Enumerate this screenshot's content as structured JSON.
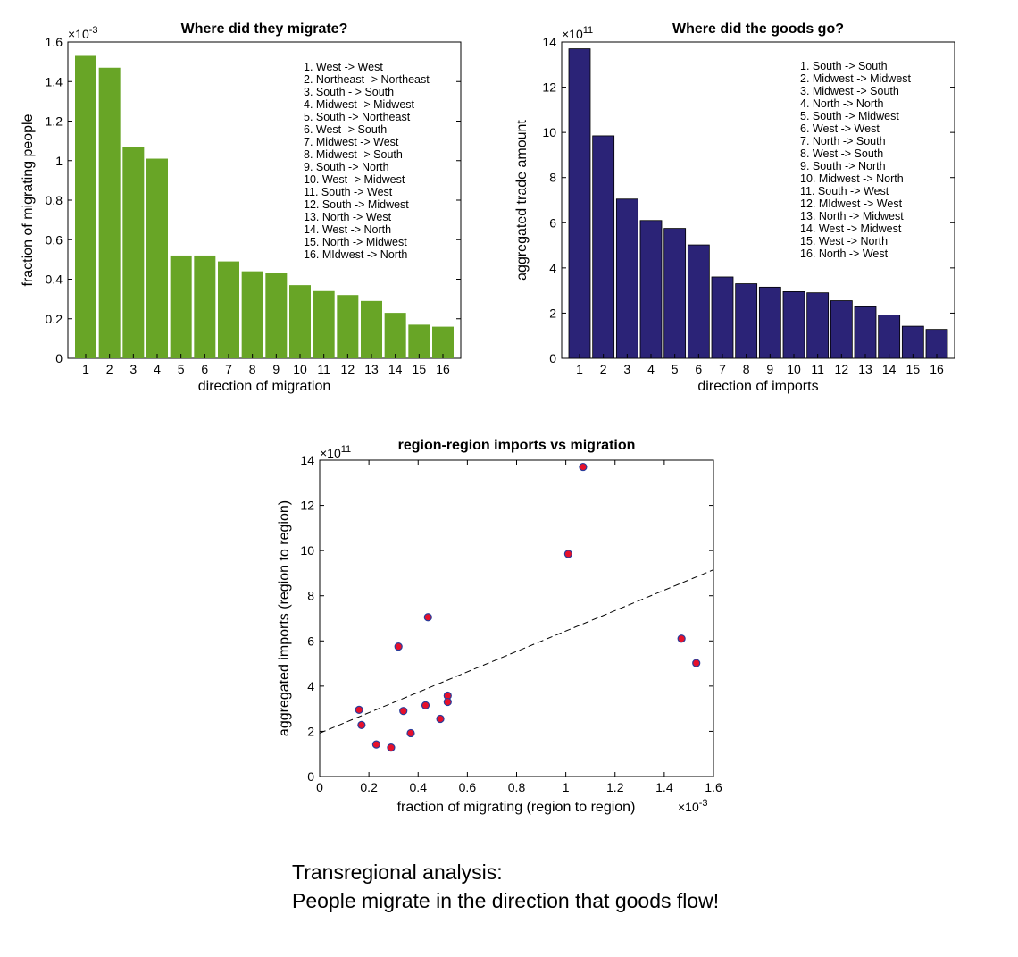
{
  "colors": {
    "migration_bar": "#68a526",
    "imports_bar": "#2b2377",
    "scatter_point": "#e8102a",
    "scatter_edge": "#2a3c9a"
  },
  "caption": {
    "line1": "Transregional analysis:",
    "line2": "People migrate in the direction that goods flow!"
  },
  "chart_data": [
    {
      "type": "bar",
      "title": "Where did they migrate?",
      "xlabel": "direction of migration",
      "ylabel": "fraction of migrating people",
      "y_exponent": "×10-3",
      "categories": [
        "1",
        "2",
        "3",
        "4",
        "5",
        "6",
        "7",
        "8",
        "9",
        "10",
        "11",
        "12",
        "13",
        "14",
        "15",
        "16"
      ],
      "values": [
        1.53,
        1.47,
        1.07,
        1.01,
        0.52,
        0.52,
        0.49,
        0.44,
        0.43,
        0.37,
        0.34,
        0.32,
        0.29,
        0.23,
        0.17,
        0.16
      ],
      "ylim": [
        0,
        1.6
      ],
      "yticks": [
        "0",
        "0.2",
        "0.4",
        "0.6",
        "0.8",
        "1",
        "1.2",
        "1.4",
        "1.6"
      ],
      "legend": [
        "1. West -> West",
        "2. Northeast -> Northeast",
        "3. South - > South",
        "4. Midwest -> Midwest",
        "5. South -> Northeast",
        "6. West -> South",
        "7. Midwest -> West",
        "8. Midwest -> South",
        "9. South -> North",
        "10. West -> Midwest",
        "11. South -> West",
        "12. South -> Midwest",
        "13. North -> West",
        "14. West -> North",
        "15. North -> Midwest",
        "16. MIdwest -> North"
      ]
    },
    {
      "type": "bar",
      "title": "Where did the goods go?",
      "xlabel": "direction of imports",
      "ylabel": "aggregated trade amount",
      "y_exponent": "×1011",
      "categories": [
        "1",
        "2",
        "3",
        "4",
        "5",
        "6",
        "7",
        "8",
        "9",
        "10",
        "11",
        "12",
        "13",
        "14",
        "15",
        "16"
      ],
      "values": [
        13.7,
        9.85,
        7.05,
        6.1,
        5.75,
        5.02,
        3.6,
        3.3,
        3.15,
        2.95,
        2.9,
        2.55,
        2.28,
        1.92,
        1.42,
        1.28
      ],
      "ylim": [
        0,
        14
      ],
      "yticks": [
        "0",
        "2",
        "4",
        "6",
        "8",
        "10",
        "12",
        "14"
      ],
      "legend": [
        "1. South -> South",
        "2. Midwest -> Midwest",
        "3. Midwest -> South",
        "4. North -> North",
        "5. South -> Midwest",
        "6. West -> West",
        "7. North -> South",
        "8. West -> South",
        "9. South -> North",
        "10. Midwest -> North",
        "11. South -> West",
        "12. MIdwest -> West",
        "13. North -> Midwest",
        "14. West -> Midwest",
        "15. West -> North",
        "16. North -> West"
      ]
    },
    {
      "type": "scatter",
      "title": "region-region imports vs migration",
      "xlabel": "fraction of migrating (region to region)",
      "ylabel": "aggregated imports (region to region)",
      "x_exponent": "×10-3",
      "y_exponent": "×1011",
      "xlim": [
        0,
        1.6
      ],
      "ylim": [
        0,
        14
      ],
      "xticks": [
        "0",
        "0.2",
        "0.4",
        "0.6",
        "0.8",
        "1",
        "1.2",
        "1.4",
        "1.6"
      ],
      "yticks": [
        "0",
        "2",
        "4",
        "6",
        "8",
        "10",
        "12",
        "14"
      ],
      "points": [
        {
          "x": 1.07,
          "y": 13.7
        },
        {
          "x": 1.01,
          "y": 9.85
        },
        {
          "x": 0.44,
          "y": 7.05
        },
        {
          "x": 1.47,
          "y": 6.1
        },
        {
          "x": 0.32,
          "y": 5.75
        },
        {
          "x": 1.53,
          "y": 5.02
        },
        {
          "x": 0.52,
          "y": 3.58
        },
        {
          "x": 0.52,
          "y": 3.3
        },
        {
          "x": 0.43,
          "y": 3.15
        },
        {
          "x": 0.16,
          "y": 2.95
        },
        {
          "x": 0.34,
          "y": 2.9
        },
        {
          "x": 0.49,
          "y": 2.55
        },
        {
          "x": 0.17,
          "y": 2.28
        },
        {
          "x": 0.37,
          "y": 1.92
        },
        {
          "x": 0.23,
          "y": 1.42
        },
        {
          "x": 0.29,
          "y": 1.28
        }
      ],
      "fit_line": {
        "x": [
          0,
          1.6
        ],
        "y": [
          1.92,
          9.15
        ]
      }
    }
  ]
}
